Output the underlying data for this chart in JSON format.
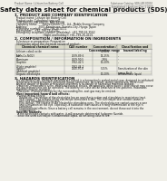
{
  "bg_color": "#f0efe8",
  "header_top_left": "Product Name: Lithium Ion Battery Cell",
  "header_top_right": "Substance Catalog: SDS-LBY-00010\nEstablished / Revision: Dec.1 2010",
  "title": "Safety data sheet for chemical products (SDS)",
  "section1_title": "1. PRODUCT AND COMPANY IDENTIFICATION",
  "section1_lines": [
    "  Product name: Lithium Ion Battery Cell",
    "  Product code: Cylindrical-type cell",
    "    IHR18650U, IHR18650L, IHR18650A",
    "  Company name:      Sanyo Electric Co., Ltd., Mobile Energy Company",
    "  Address:              2001 Kamitsuwa, Sumoto-City, Hyogo, Japan",
    "  Telephone number:   +81-799-26-4111",
    "  Fax number:   +81-799-26-4120",
    "  Emergency telephone number (Weekday): +81-799-26-3562",
    "                                    (Night and holiday): +81-799-26-4101"
  ],
  "section2_title": "2. COMPOSITION / INFORMATION ON INGREDIENTS",
  "section2_sub": "  Substance or preparation: Preparation",
  "section2_sub2": "  Information about the chemical nature of product:",
  "table_col1_header": "Chemical chemical name",
  "table_col2_header": "CAS number",
  "table_col3_header": "Concentration /\nConcentration range",
  "table_col4_header": "Classification and\nhazard labeling",
  "table_rows": [
    [
      "Lithium cobalt oxide\n(LiMn-Co-NiO2)",
      "-",
      "30-50%",
      "-"
    ],
    [
      "Iron",
      "7439-89-6",
      "15-25%",
      "-"
    ],
    [
      "Aluminum",
      "7429-90-5",
      "2-8%",
      "-"
    ],
    [
      "Graphite\n(Flake graphite)\n(Artificial graphite)",
      "7782-42-5\n7782-44-2",
      "10-20%",
      "-"
    ],
    [
      "Copper",
      "7440-50-8",
      "5-15%",
      "Sensitization of the skin\ngroup No.2"
    ],
    [
      "Organic electrolyte",
      "-",
      "10-20%",
      "Inflammable liquid"
    ]
  ],
  "section3_title": "3. HAZARDS IDENTIFICATION",
  "section3_lines": [
    "  For the battery cell, chemical materials are stored in a hermetically sealed metal case, designed to withstand",
    "  temperatures and pressures generated during normal use. As a result, during normal use, there is no",
    "  physical danger of ignition or explosion and there is no danger of hazardous materials leakage.",
    "    However, if exposed to a fire, added mechanical shocks, decomposed, when electric short-circuit may occur.",
    "  the gas release vent can be operated. The battery cell case will be breached of fire-patterns. Hazardous",
    "  materials may be released.",
    "    Moreover, if heated strongly by the surrounding fire, soot gas may be emitted."
  ],
  "bullet1": "  Most important hazard and effects:",
  "human_health": "    Human health effects:",
  "inhalation": "      Inhalation: The release of the electrolyte has an anesthesia action and stimulates in respiratory tract.",
  "skin1": "      Skin contact: The release of the electrolyte stimulates a skin. The electrolyte skin contact causes a",
  "skin2": "      sore and stimulation on the skin.",
  "eye1": "      Eye contact: The release of the electrolyte stimulates eyes. The electrolyte eye contact causes a sore",
  "eye2": "      and stimulation on the eye. Especially, a substance that causes a strong inflammation of the eye is",
  "eye3": "      contained.",
  "env1": "      Environmental effects: Since a battery cell remains in the environment, do not throw out it into the",
  "env2": "      environment.",
  "bullet2": "  Specific hazards:",
  "sp1": "    If the electrolyte contacts with water, it will generate detrimental hydrogen fluoride.",
  "sp2": "    Since the used electrolyte is inflammable liquid, do not bring close to fire."
}
